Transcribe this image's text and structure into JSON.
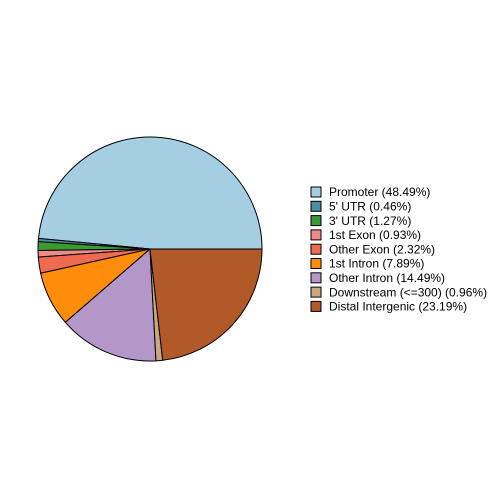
{
  "chart_data": {
    "type": "pie",
    "categories": [
      "Promoter (48.49%)",
      "5' UTR (0.46%)",
      "3' UTR (1.27%)",
      "1st Exon (0.93%)",
      "Other Exon (2.32%)",
      "1st Intron (7.89%)",
      "Other Intron (14.49%)",
      "Downstream (<=300) (0.96%)",
      "Distal Intergenic (23.19%)"
    ],
    "values": [
      48.49,
      0.46,
      1.27,
      0.93,
      2.32,
      7.89,
      14.49,
      0.96,
      23.19
    ],
    "colors": [
      "#a6cee3",
      "#4a8fa0",
      "#3c9a34",
      "#f08a86",
      "#ee6a50",
      "#ff8c0a",
      "#b497c9",
      "#c8a882",
      "#b15928"
    ],
    "legend": "right"
  }
}
